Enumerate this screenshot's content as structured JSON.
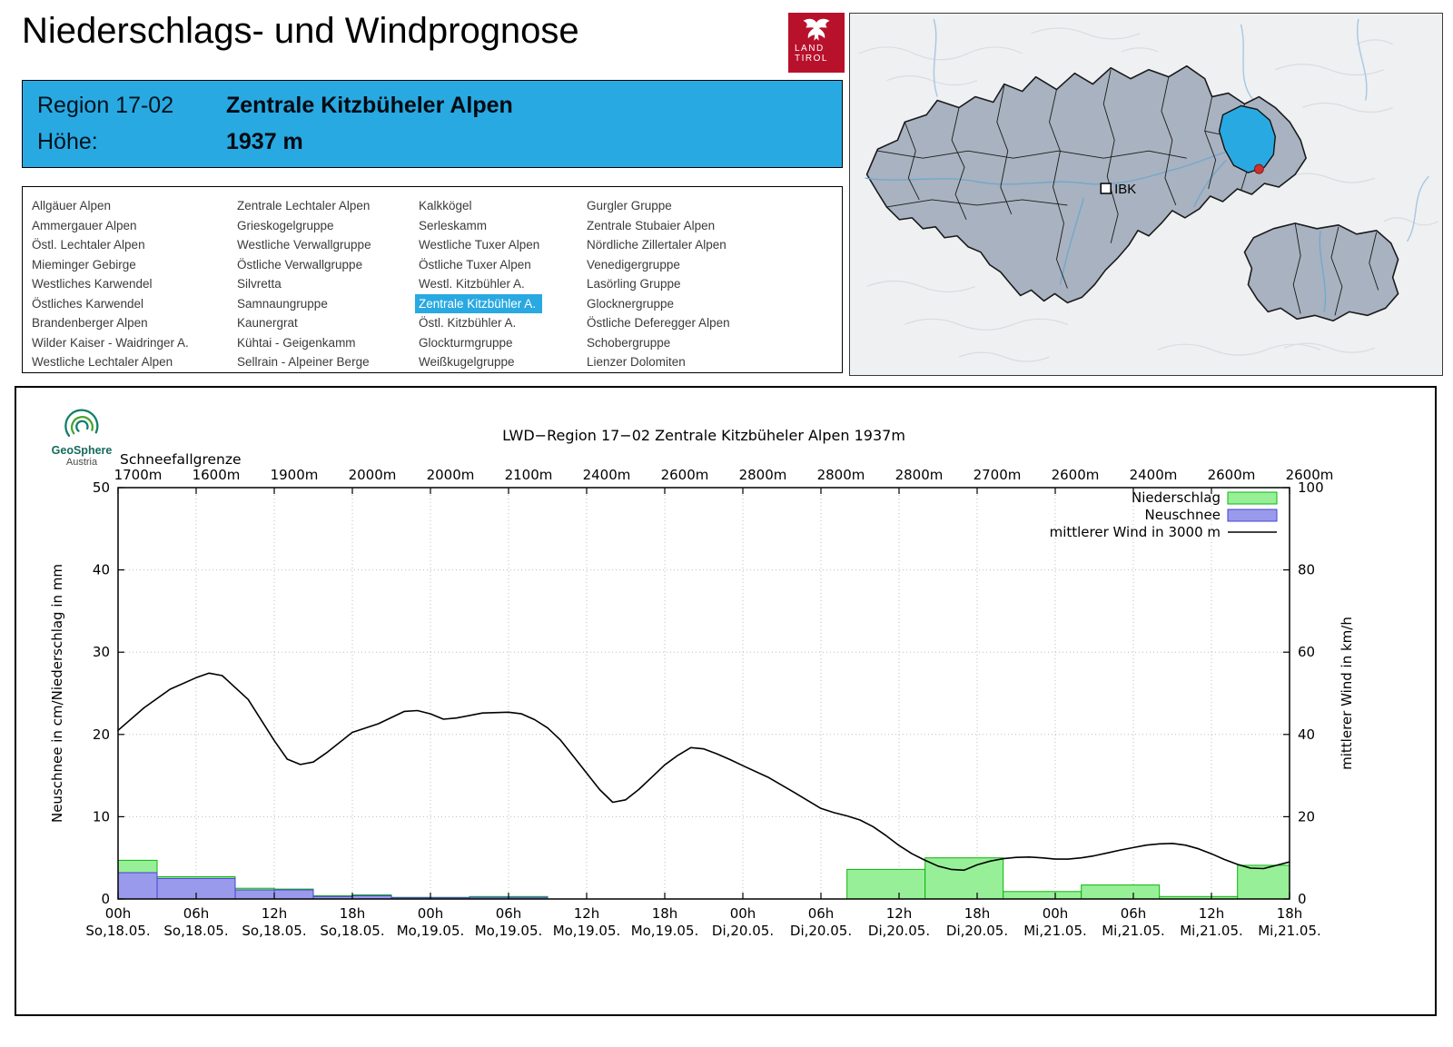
{
  "page": {
    "title": "Niederschlags- und Windprognose"
  },
  "logo": {
    "line1": "LAND",
    "line2": "TIROL"
  },
  "map": {
    "marker_label": "IBK"
  },
  "region_header": {
    "region_label": "Region 17-02",
    "region_value": "Zentrale Kitzbüheler Alpen",
    "altitude_label": "Höhe:",
    "altitude_value": "1937 m"
  },
  "region_list": {
    "selected": "Zentrale Kitzbühler A.",
    "columns": [
      [
        "Allgäuer Alpen",
        "Ammergauer Alpen",
        "Östl. Lechtaler Alpen",
        "Mieminger Gebirge",
        "Westliches Karwendel",
        "Östliches Karwendel",
        "Brandenberger Alpen",
        "Wilder Kaiser - Waidringer A.",
        "Westliche Lechtaler Alpen"
      ],
      [
        "Zentrale Lechtaler Alpen",
        "Grieskogelgruppe",
        "Westliche Verwallgruppe",
        "Östliche Verwallgruppe",
        "Silvretta",
        "Samnaungruppe",
        "Kaunergrat",
        "Kühtai - Geigenkamm",
        "Sellrain - Alpeiner Berge"
      ],
      [
        "Kalkkögel",
        "Serleskamm",
        "Westliche Tuxer Alpen",
        "Östliche Tuxer Alpen",
        "Westl. Kitzbühler A.",
        "Zentrale Kitzbühler A.",
        "Östl. Kitzbühler A.",
        "Glockturmgruppe",
        "Weißkugelgruppe"
      ],
      [
        "Gurgler Gruppe",
        "Zentrale Stubaier Alpen",
        "Nördliche Zillertaler Alpen",
        "Venedigergruppe",
        "Lasörling Gruppe",
        "Glocknergruppe",
        "Östliche Deferegger Alpen",
        "Schobergruppe",
        "Lienzer Dolomiten"
      ]
    ]
  },
  "chart_data": {
    "type": "bar+line",
    "title": "LWD−Region 17−02 Zentrale Kitzbüheler Alpen 1937m",
    "branding": {
      "name": "GeoSphere",
      "sub": "Austria"
    },
    "grid": true,
    "legend_position": "top-right",
    "x_hours_range": [
      0,
      90
    ],
    "x_tick_step_h": 6,
    "x_tick_labels": [
      {
        "hour": "00h",
        "date": "So,18.05."
      },
      {
        "hour": "06h",
        "date": "So,18.05."
      },
      {
        "hour": "12h",
        "date": "So,18.05."
      },
      {
        "hour": "18h",
        "date": "So,18.05."
      },
      {
        "hour": "00h",
        "date": "Mo,19.05."
      },
      {
        "hour": "06h",
        "date": "Mo,19.05."
      },
      {
        "hour": "12h",
        "date": "Mo,19.05."
      },
      {
        "hour": "18h",
        "date": "Mo,19.05."
      },
      {
        "hour": "00h",
        "date": "Di,20.05."
      },
      {
        "hour": "06h",
        "date": "Di,20.05."
      },
      {
        "hour": "12h",
        "date": "Di,20.05."
      },
      {
        "hour": "18h",
        "date": "Di,20.05."
      },
      {
        "hour": "00h",
        "date": "Mi,21.05."
      },
      {
        "hour": "06h",
        "date": "Mi,21.05."
      },
      {
        "hour": "12h",
        "date": "Mi,21.05."
      },
      {
        "hour": "18h",
        "date": "Mi,21.05."
      }
    ],
    "snowline": {
      "label": "Schneefallgrenze",
      "values_m": [
        "1700m",
        "1600m",
        "1900m",
        "2000m",
        "2000m",
        "2100m",
        "2400m",
        "2600m",
        "2800m",
        "2800m",
        "2800m",
        "2700m",
        "2600m",
        "2400m",
        "2600m",
        "2600m"
      ]
    },
    "y_left": {
      "label": "Neuschnee in cm/Niederschlag in mm",
      "min": 0,
      "max": 50,
      "ticks": [
        0,
        10,
        20,
        30,
        40,
        50
      ]
    },
    "y_right": {
      "label": "mittlerer Wind in km/h",
      "min": 0,
      "max": 100,
      "ticks": [
        0,
        20,
        40,
        60,
        80,
        100
      ]
    },
    "series": [
      {
        "name": "Niederschlag",
        "type": "bar",
        "unit": "mm",
        "axis": "left",
        "color_fill": "#97f097",
        "color_stroke": "#0db40d",
        "bars": [
          [
            0,
            3,
            4.7
          ],
          [
            3,
            9,
            2.7
          ],
          [
            9,
            12,
            1.3
          ],
          [
            12,
            15,
            1.2
          ],
          [
            15,
            18,
            0.4
          ],
          [
            18,
            21,
            0.5
          ],
          [
            21,
            27,
            0.2
          ],
          [
            27,
            33,
            0.3
          ],
          [
            56,
            62,
            3.6
          ],
          [
            62,
            68,
            5.0
          ],
          [
            68,
            74,
            0.9
          ],
          [
            74,
            80,
            1.7
          ],
          [
            80,
            86,
            0.3
          ],
          [
            86,
            90,
            4.1
          ]
        ]
      },
      {
        "name": "Neuschnee",
        "type": "bar",
        "unit": "cm",
        "axis": "left",
        "color_fill": "#9a9aec",
        "color_stroke": "#4643cf",
        "bars": [
          [
            0,
            3,
            3.2
          ],
          [
            3,
            9,
            2.5
          ],
          [
            9,
            12,
            1.1
          ],
          [
            12,
            15,
            1.1
          ],
          [
            15,
            18,
            0.3
          ],
          [
            18,
            21,
            0.4
          ],
          [
            21,
            27,
            0.15
          ],
          [
            27,
            33,
            0.2
          ]
        ]
      },
      {
        "name": "mittlerer Wind in 3000 m",
        "type": "line",
        "unit": "km/h",
        "axis": "right",
        "color_stroke": "#000000",
        "points": [
          [
            0,
            41
          ],
          [
            2,
            46.5
          ],
          [
            4,
            51
          ],
          [
            6,
            53.8
          ],
          [
            7,
            54.9
          ],
          [
            8,
            54.3
          ],
          [
            10,
            48.5
          ],
          [
            12,
            38.5
          ],
          [
            13,
            34
          ],
          [
            14,
            32.7
          ],
          [
            15,
            33.3
          ],
          [
            16,
            35.5
          ],
          [
            18,
            40.5
          ],
          [
            20,
            42.6
          ],
          [
            22,
            45.6
          ],
          [
            23,
            45.8
          ],
          [
            24,
            45
          ],
          [
            25,
            43.7
          ],
          [
            26,
            44
          ],
          [
            28,
            45.2
          ],
          [
            30,
            45.4
          ],
          [
            31,
            45
          ],
          [
            32,
            43.6
          ],
          [
            33,
            41.6
          ],
          [
            34,
            38.6
          ],
          [
            35,
            34.6
          ],
          [
            36,
            30.6
          ],
          [
            37,
            26.6
          ],
          [
            38,
            23.5
          ],
          [
            39,
            24.1
          ],
          [
            40,
            26.6
          ],
          [
            41,
            29.6
          ],
          [
            42,
            32.6
          ],
          [
            43,
            34.9
          ],
          [
            44,
            36.8
          ],
          [
            45,
            36.5
          ],
          [
            46,
            35.3
          ],
          [
            47,
            33.9
          ],
          [
            48,
            32.4
          ],
          [
            50,
            29.5
          ],
          [
            52,
            25.8
          ],
          [
            54,
            22
          ],
          [
            55,
            21
          ],
          [
            56,
            20.2
          ],
          [
            57,
            19.2
          ],
          [
            58,
            17.6
          ],
          [
            59,
            15.4
          ],
          [
            60,
            13
          ],
          [
            61,
            11
          ],
          [
            62,
            9.4
          ],
          [
            63,
            8
          ],
          [
            64,
            7.2
          ],
          [
            65,
            7
          ],
          [
            66,
            8.3
          ],
          [
            67,
            9.2
          ],
          [
            68,
            9.8
          ],
          [
            69,
            10.1
          ],
          [
            70,
            10.2
          ],
          [
            71,
            10
          ],
          [
            72,
            9.7
          ],
          [
            73,
            9.7
          ],
          [
            74,
            10
          ],
          [
            75,
            10.5
          ],
          [
            76,
            11.2
          ],
          [
            77,
            11.9
          ],
          [
            78,
            12.5
          ],
          [
            79,
            13.1
          ],
          [
            80,
            13.4
          ],
          [
            81,
            13.5
          ],
          [
            82,
            13.1
          ],
          [
            83,
            12.2
          ],
          [
            84,
            11
          ],
          [
            85,
            9.6
          ],
          [
            86,
            8.4
          ],
          [
            87,
            7.5
          ],
          [
            88,
            7.4
          ],
          [
            89,
            8.2
          ],
          [
            90,
            9
          ]
        ]
      }
    ]
  },
  "colors": {
    "accent_blue": "#29a9e1",
    "logo_red": "#b8112c",
    "precip_green_fill": "#97f097",
    "precip_green_stroke": "#0db40d",
    "snow_blue_fill": "#9a9aec",
    "snow_blue_stroke": "#4643cf",
    "map_region_fill": "#a8b2c0",
    "selected_region_fill": "#29a9e1"
  }
}
